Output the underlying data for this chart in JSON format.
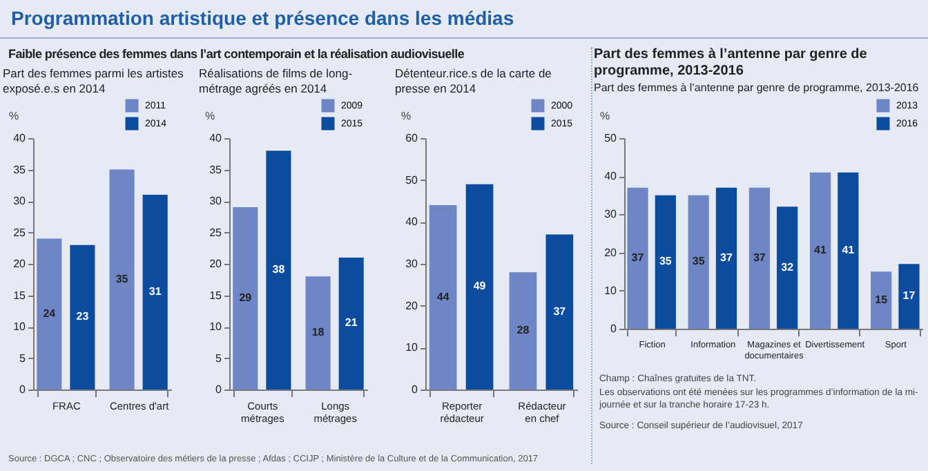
{
  "chart_data": [
    {
      "type": "bar",
      "title": "Faible présence des femmes dans l’art contemporain et la réalisation audiovisuelle",
      "subtitle": "Part des femmes parmi les artistes exposé.e.s en 2014",
      "ylabel": "%",
      "categories": [
        "FRAC",
        "Centres d'art"
      ],
      "series": [
        {
          "name": "2011",
          "color": "#6f86c6",
          "values": [
            24,
            35
          ]
        },
        {
          "name": "2014",
          "color": "#0b4c9f",
          "values": [
            23,
            31
          ]
        }
      ],
      "ylim": [
        0,
        40
      ],
      "yticks": [
        0,
        5,
        10,
        15,
        20,
        25,
        30,
        35,
        40
      ],
      "data_labels": true,
      "legend": "top right",
      "annotations": [
        "Programmation artistique et présence dans les médias",
        "Source : DGCA ; CNC ; Observatoire des métiers de la presse ; Afdas ; CCIJP ; Ministère de la Culture et de la Communication, 2017"
      ]
    },
    {
      "type": "bar",
      "subtitle": "Réalisations de films de long-métrage agréés en 2014",
      "ylabel": "%",
      "categories": [
        "Courts métrages",
        "Longs métrages"
      ],
      "series": [
        {
          "name": "2009",
          "color": "#6f86c6",
          "values": [
            29,
            18
          ]
        },
        {
          "name": "2015",
          "color": "#0b4c9f",
          "values": [
            38,
            21
          ]
        }
      ],
      "ylim": [
        0,
        40
      ],
      "yticks": [
        0,
        5,
        10,
        15,
        20,
        25,
        30,
        35,
        40
      ],
      "data_labels": true,
      "legend": "top right"
    },
    {
      "type": "bar",
      "subtitle": "Détenteur.rice.s de la carte de presse en 2014",
      "ylabel": "%",
      "categories": [
        "Reporter rédacteur",
        "Rédacteur en chef"
      ],
      "series": [
        {
          "name": "2000",
          "color": "#6f86c6",
          "values": [
            44,
            28
          ]
        },
        {
          "name": "2015",
          "color": "#0b4c9f",
          "values": [
            49,
            37
          ]
        }
      ],
      "ylim": [
        0,
        60
      ],
      "yticks": [
        0,
        10,
        20,
        30,
        40,
        50,
        60
      ],
      "data_labels": true,
      "legend": "top right"
    },
    {
      "type": "bar",
      "title": "Part des femmes à l’antenne par genre de programme, 2013-2016",
      "subtitle": "Part des femmes à l’antenne par genre de programme, 2013-2016",
      "ylabel": "%",
      "categories": [
        "Fiction",
        "Information",
        "Magazines et documentaires",
        "Divertissement",
        "Sport"
      ],
      "series": [
        {
          "name": "2013",
          "color": "#6f86c6",
          "values": [
            37,
            35,
            37,
            41,
            15
          ]
        },
        {
          "name": "2016",
          "color": "#0b4c9f",
          "values": [
            35,
            37,
            32,
            41,
            17
          ]
        }
      ],
      "ylim": [
        0,
        50
      ],
      "yticks": [
        0,
        10,
        20,
        30,
        40,
        50
      ],
      "data_labels": true,
      "legend": "top right",
      "annotations": [
        "Champ : Chaînes gratuites de la TNT.",
        "Les observations ont été menées sur les programmes d’information de la mi-journée et sur la tranche horaire 17-23 h.",
        "Source : Conseil supérieur de l’audiovisuel, 2017"
      ]
    }
  ]
}
